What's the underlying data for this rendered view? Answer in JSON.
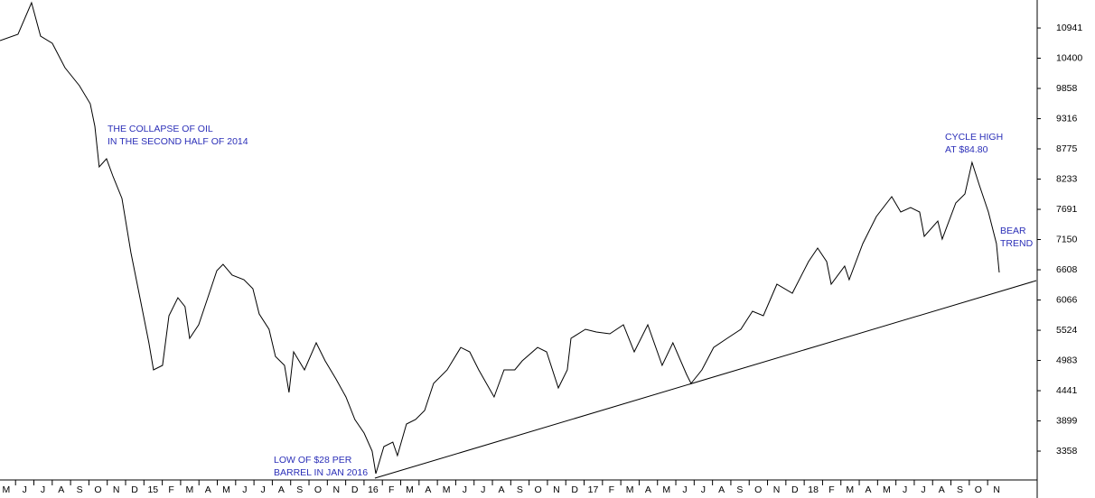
{
  "chart_data": {
    "type": "line",
    "x": [
      -0.34,
      0.64,
      1.38,
      1.87,
      2.51,
      3.2,
      3.99,
      4.58,
      4.83,
      5.07,
      5.47,
      5.81,
      6.31,
      6.8,
      7.29,
      7.78,
      8.03,
      8.52,
      8.87,
      9.36,
      9.75,
      10.0,
      10.49,
      10.99,
      11.48,
      11.82,
      12.32,
      12.96,
      13.45,
      13.79,
      14.33,
      14.68,
      15.17,
      15.42,
      15.67,
      16.26,
      16.9,
      17.39,
      17.98,
      18.52,
      19.01,
      19.51,
      19.95,
      20.15,
      20.59,
      21.08,
      21.33,
      21.82,
      22.32,
      22.81,
      23.3,
      24.04,
      24.78,
      25.27,
      25.76,
      26.6,
      27.14,
      27.73,
      28.13,
      28.97,
      29.46,
      30.1,
      30.59,
      30.79,
      31.58,
      32.17,
      32.91,
      33.65,
      34.24,
      34.98,
      35.76,
      36.35,
      37.09,
      37.34,
      37.93,
      38.57,
      39.31,
      40.05,
      40.69,
      41.28,
      42.02,
      42.86,
      43.74,
      44.24,
      44.73,
      44.98,
      45.71,
      45.96,
      46.7,
      47.44,
      48.28,
      48.77,
      49.31,
      49.8,
      50.05,
      50.79,
      51.03,
      51.77,
      52.27,
      52.66,
      53.05,
      53.55,
      53.99,
      54.14
    ],
    "series": [
      {
        "color": "#000000",
        "values": [
          10715,
          10829,
          11394,
          10796,
          10667,
          10230,
          9907,
          9583,
          9179,
          8452,
          8597,
          8290,
          7886,
          6915,
          6107,
          5298,
          4813,
          4894,
          5784,
          6107,
          5945,
          5379,
          5622,
          6107,
          6592,
          6705,
          6511,
          6430,
          6269,
          5816,
          5541,
          5055,
          4894,
          4409,
          5137,
          4813,
          5298,
          4975,
          4651,
          4328,
          3924,
          3681,
          3358,
          2954,
          3439,
          3519,
          3277,
          3843,
          3924,
          4086,
          4571,
          4813,
          5217,
          5137,
          4813,
          4328,
          4813,
          4813,
          4975,
          5217,
          5137,
          4490,
          4813,
          5379,
          5541,
          5493,
          5460,
          5622,
          5137,
          5622,
          4894,
          5298,
          4732,
          4571,
          4813,
          5217,
          5379,
          5541,
          5864,
          5784,
          6350,
          6188,
          6754,
          6996,
          6754,
          6350,
          6673,
          6430,
          7077,
          7562,
          7918,
          7643,
          7724,
          7643,
          7207,
          7481,
          7158,
          7805,
          7966,
          8532,
          8128,
          7643,
          7077,
          6560
        ]
      }
    ],
    "trendline": {
      "color": "#000000",
      "x": [
        20.1,
        56.16
      ],
      "values": [
        2873,
        6414
      ]
    },
    "xlim": [
      -0.34,
      56.16
    ],
    "ylim": [
      2841,
      11443
    ],
    "yticks": [
      3358,
      3899,
      4441,
      4983,
      5524,
      6066,
      6608,
      7150,
      7691,
      8233,
      8775,
      9316,
      9858,
      10400,
      10941
    ],
    "xticks": [
      {
        "value": 0,
        "label": "M"
      },
      {
        "value": 1,
        "label": "J"
      },
      {
        "value": 2,
        "label": "J"
      },
      {
        "value": 3,
        "label": "A"
      },
      {
        "value": 4,
        "label": "S"
      },
      {
        "value": 5,
        "label": "O"
      },
      {
        "value": 6,
        "label": "N"
      },
      {
        "value": 7,
        "label": "D"
      },
      {
        "value": 8,
        "label": "15"
      },
      {
        "value": 9,
        "label": "F"
      },
      {
        "value": 10,
        "label": "M"
      },
      {
        "value": 11,
        "label": "A"
      },
      {
        "value": 12,
        "label": "M"
      },
      {
        "value": 13,
        "label": "J"
      },
      {
        "value": 14,
        "label": "J"
      },
      {
        "value": 15,
        "label": "A"
      },
      {
        "value": 16,
        "label": "S"
      },
      {
        "value": 17,
        "label": "O"
      },
      {
        "value": 18,
        "label": "N"
      },
      {
        "value": 19,
        "label": "D"
      },
      {
        "value": 20,
        "label": "16"
      },
      {
        "value": 21,
        "label": "F"
      },
      {
        "value": 22,
        "label": "M"
      },
      {
        "value": 23,
        "label": "A"
      },
      {
        "value": 24,
        "label": "M"
      },
      {
        "value": 25,
        "label": "J"
      },
      {
        "value": 26,
        "label": "J"
      },
      {
        "value": 27,
        "label": "A"
      },
      {
        "value": 28,
        "label": "S"
      },
      {
        "value": 29,
        "label": "O"
      },
      {
        "value": 30,
        "label": "N"
      },
      {
        "value": 31,
        "label": "D"
      },
      {
        "value": 32,
        "label": "17"
      },
      {
        "value": 33,
        "label": "F"
      },
      {
        "value": 34,
        "label": "M"
      },
      {
        "value": 35,
        "label": "A"
      },
      {
        "value": 36,
        "label": "M"
      },
      {
        "value": 37,
        "label": "J"
      },
      {
        "value": 38,
        "label": "J"
      },
      {
        "value": 39,
        "label": "A"
      },
      {
        "value": 40,
        "label": "S"
      },
      {
        "value": 41,
        "label": "O"
      },
      {
        "value": 42,
        "label": "N"
      },
      {
        "value": 43,
        "label": "D"
      },
      {
        "value": 44,
        "label": "18"
      },
      {
        "value": 45,
        "label": "F"
      },
      {
        "value": 46,
        "label": "M"
      },
      {
        "value": 47,
        "label": "A"
      },
      {
        "value": 48,
        "label": "M"
      },
      {
        "value": 49,
        "label": "J"
      },
      {
        "value": 50,
        "label": "J"
      },
      {
        "value": 51,
        "label": "A"
      },
      {
        "value": 52,
        "label": "S"
      },
      {
        "value": 53,
        "label": "O"
      },
      {
        "value": 54,
        "label": "N"
      }
    ],
    "annotations": [
      [
        "THE COLLAPSE OF OIL",
        "IN THE SECOND HALF OF 2014"
      ],
      [
        "LOW OF $28 PER",
        "BARREL IN JAN 2016"
      ],
      [
        "CYCLE HIGH",
        "AT $84.80"
      ],
      [
        "BEAR",
        "TREND"
      ]
    ],
    "annotation_color": "#2b2fb8"
  }
}
